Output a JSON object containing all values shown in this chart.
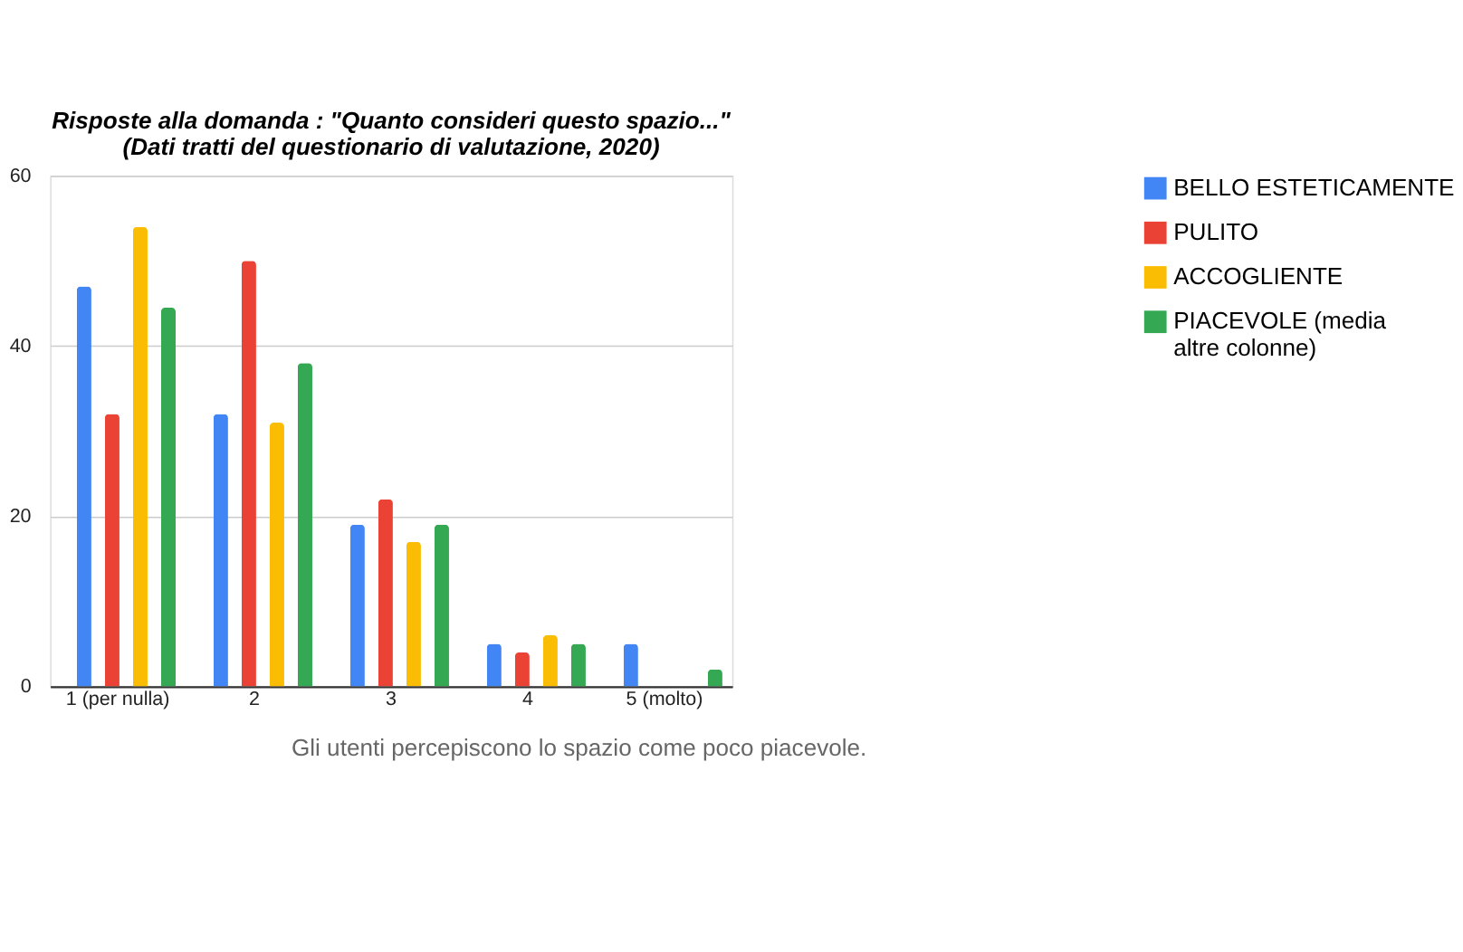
{
  "chart_data": {
    "type": "bar",
    "title": "Risposte alla domanda : \"Quanto consideri questo spazio...\"\n(Dati tratti del questionario di valutazione, 2020)",
    "categories": [
      "1 (per nulla)",
      "2",
      "3",
      "4",
      "5 (molto)"
    ],
    "series": [
      {
        "name": "BELLO ESTETICAMENTE",
        "color": "#4285f4",
        "values": [
          47,
          32,
          19,
          5,
          5
        ]
      },
      {
        "name": "PULITO",
        "color": "#ea4335",
        "values": [
          32,
          50,
          22,
          4,
          0
        ]
      },
      {
        "name": "ACCOGLIENTE",
        "color": "#fbbc04",
        "values": [
          54,
          31,
          17,
          6,
          0
        ]
      },
      {
        "name": "PIACEVOLE (media altre colonne)",
        "color": "#34a853",
        "values": [
          44.5,
          38,
          19,
          5,
          2
        ]
      }
    ],
    "ylim": [
      0,
      60
    ],
    "yticks": [
      0,
      20,
      40,
      60
    ],
    "grid": "y",
    "legend": "right",
    "annotations": [
      "Gli utenti percepiscono lo spazio come poco piacevole."
    ]
  }
}
